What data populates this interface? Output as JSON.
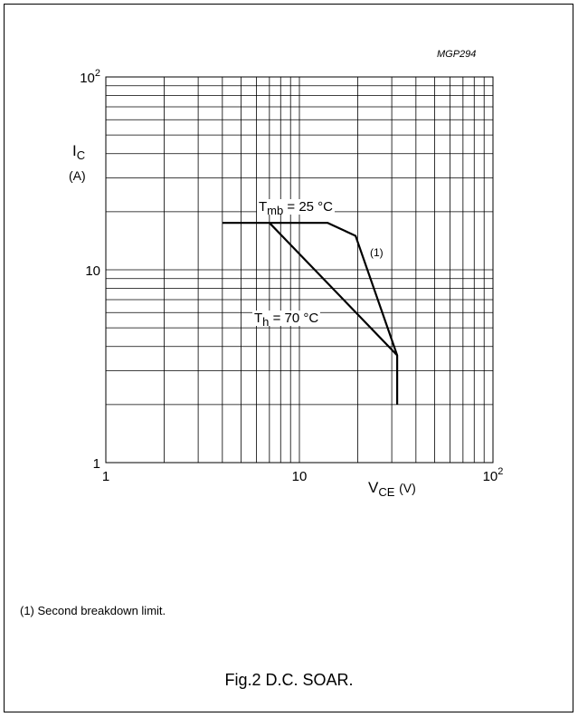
{
  "chart_data": {
    "type": "line",
    "code": "MGP294",
    "x_scale": "log",
    "y_scale": "log",
    "xlim": [
      1,
      100
    ],
    "ylim": [
      1,
      100
    ],
    "grid": true,
    "x_tick_labels": [
      {
        "value": 1,
        "base": "1",
        "exp": ""
      },
      {
        "value": 10,
        "base": "10",
        "exp": ""
      },
      {
        "value": 100,
        "base": "10",
        "exp": "2"
      }
    ],
    "y_tick_labels": [
      {
        "value": 1,
        "base": "1",
        "exp": ""
      },
      {
        "value": 10,
        "base": "10",
        "exp": ""
      },
      {
        "value": 100,
        "base": "10",
        "exp": "2"
      }
    ],
    "ylabel": {
      "main": "I",
      "sub": "C",
      "unit": "(A)"
    },
    "xlabel": {
      "main": "V",
      "sub": "CE",
      "unit": "(V)"
    },
    "series": [
      {
        "name_main": "T",
        "name_sub": "mb",
        "name_rest": " = 25 °C",
        "points": [
          [
            4,
            17.5
          ],
          [
            14,
            17.5
          ],
          [
            19.5,
            15
          ],
          [
            32,
            3.6
          ],
          [
            32,
            2
          ]
        ]
      },
      {
        "name_main": "T",
        "name_sub": "h",
        "name_rest": " = 70 °C",
        "points": [
          [
            7,
            17.5
          ],
          [
            32,
            3.6
          ]
        ]
      }
    ],
    "annotation": "(1)"
  },
  "footnote": "(1) Second breakdown limit.",
  "caption": "Fig.2 D.C. SOAR."
}
